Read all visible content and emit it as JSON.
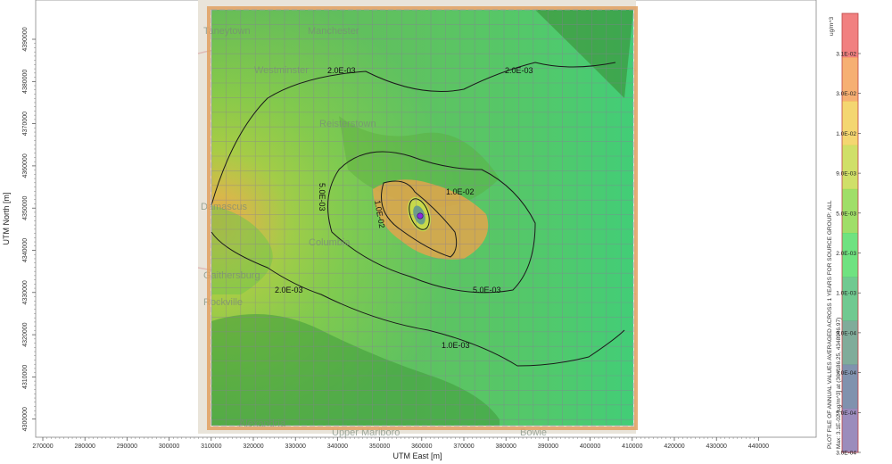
{
  "axes": {
    "x_title": "UTM East [m]",
    "y_title": "UTM North [m]",
    "x_ticks": [
      "270000",
      "280000",
      "290000",
      "300000",
      "310000",
      "320000",
      "330000",
      "340000",
      "350000",
      "360000",
      "370000",
      "380000",
      "390000",
      "400000",
      "410000",
      "420000",
      "430000",
      "440000"
    ],
    "y_ticks": [
      "4390000",
      "4380000",
      "4370000",
      "4360000",
      "4350000",
      "4340000",
      "4330000",
      "4320000",
      "4310000",
      "4300000"
    ]
  },
  "map": {
    "places": [
      "Taneytown",
      "Manchester",
      "Westminster",
      "Reisterstown",
      "Damascus",
      "Columbia",
      "Gaithersburg",
      "Rockville",
      "Alexandria",
      "Upper Marlboro",
      "Bowie"
    ],
    "contours": [
      {
        "label": "2.0E-03",
        "value": 0.002
      },
      {
        "label": "2.0E-03",
        "value": 0.002
      },
      {
        "label": "2.0E-03",
        "value": 0.002
      },
      {
        "label": "5.0E-03",
        "value": 0.005
      },
      {
        "label": "5.0E-03",
        "value": 0.005
      },
      {
        "label": "1.0E-02",
        "value": 0.01
      },
      {
        "label": "1.0E-02",
        "value": 0.01
      },
      {
        "label": "1.0E-03",
        "value": 0.001
      }
    ],
    "source_marker_color": "#8a2be2"
  },
  "legend": {
    "unit": "ug/m^3",
    "ticks": [
      "3.1E-02",
      "3.0E-02",
      "1.0E-02",
      "9.0E-03",
      "5.0E-03",
      "2.0E-03",
      "1.0E-03",
      "9.0E-04",
      "7.0E-04",
      "5.0E-04",
      "3.0E-04"
    ],
    "colors": [
      "#ee6a6a",
      "#f4a15a",
      "#f2cf58",
      "#c8d94e",
      "#8fd84e",
      "#57dd6a",
      "#58c07d",
      "#6a9e88",
      "#6a7fa0",
      "#8a78b0",
      "#a178c6"
    ],
    "note_line1": "PLOT FILE OF ANNUAL VALUES AVERAGED ACROSS 1 YEARS FOR SOURCE GROUP: ALL",
    "note_line2": "Max: 3.1E-02 [ug/m^3] at (364186.25, 4348946.97)"
  }
}
